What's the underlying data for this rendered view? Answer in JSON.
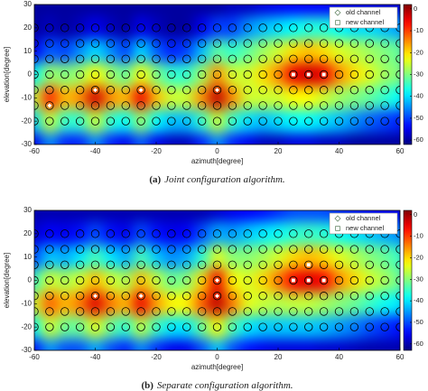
{
  "chart_data": [
    {
      "type": "heatmap",
      "xlabel": "azimuth[degree]",
      "ylabel": "elevation[degree]",
      "caption_label": "(a)",
      "caption": "Joint configuration algorithm.",
      "x": [
        -60,
        -55,
        -50,
        -45,
        -40,
        -35,
        -30,
        -25,
        -20,
        -15,
        -10,
        -5,
        0,
        5,
        10,
        15,
        20,
        25,
        30,
        35,
        40,
        45,
        50,
        55,
        60
      ],
      "y": [
        30,
        20,
        10,
        0,
        -10,
        -20,
        -30
      ],
      "values": [
        [
          -60,
          -60,
          -60,
          -60,
          -60,
          -60,
          -60,
          -60,
          -60,
          -60,
          -60,
          -60,
          -60,
          -58,
          -58,
          -56,
          -55,
          -54,
          -54,
          -54,
          -55,
          -55,
          -55,
          -56,
          -56
        ],
        [
          -60,
          -58,
          -60,
          -58,
          -55,
          -58,
          -60,
          -55,
          -58,
          -60,
          -60,
          -55,
          -50,
          -50,
          -45,
          -42,
          -40,
          -38,
          -36,
          -36,
          -38,
          -40,
          -40,
          -42,
          -44
        ],
        [
          -55,
          -48,
          -50,
          -45,
          -40,
          -45,
          -50,
          -40,
          -48,
          -52,
          -50,
          -42,
          -32,
          -35,
          -32,
          -28,
          -25,
          -20,
          -18,
          -20,
          -24,
          -26,
          -28,
          -30,
          -32
        ],
        [
          -38,
          -28,
          -30,
          -28,
          -22,
          -28,
          -32,
          -22,
          -30,
          -35,
          -35,
          -28,
          -15,
          -25,
          -25,
          -20,
          -15,
          -5,
          -3,
          -5,
          -15,
          -20,
          -24,
          -28,
          -30
        ],
        [
          -25,
          -8,
          -18,
          -15,
          -3,
          -15,
          -18,
          -5,
          -18,
          -25,
          -25,
          -15,
          -2,
          -15,
          -25,
          -25,
          -25,
          -22,
          -22,
          -25,
          -28,
          -30,
          -32,
          -35,
          -38
        ],
        [
          -40,
          -25,
          -35,
          -35,
          -25,
          -35,
          -38,
          -28,
          -38,
          -42,
          -42,
          -35,
          -25,
          -35,
          -40,
          -42,
          -40,
          -38,
          -38,
          -40,
          -42,
          -45,
          -48,
          -50,
          -52
        ],
        [
          -55,
          -45,
          -52,
          -52,
          -45,
          -52,
          -55,
          -48,
          -55,
          -58,
          -58,
          -52,
          -45,
          -52,
          -55,
          -58,
          -58,
          -56,
          -56,
          -58,
          -58,
          -60,
          -60,
          -60,
          -60
        ]
      ],
      "xlim": [
        -60,
        60
      ],
      "ylim": [
        -30,
        30
      ],
      "xticks": [
        -60,
        -40,
        -20,
        0,
        20,
        40,
        60
      ],
      "yticks": [
        -30,
        -20,
        -10,
        0,
        10,
        20,
        30
      ],
      "colormap": "jet",
      "clim": [
        -62,
        2
      ],
      "cticks": [
        -60,
        -50,
        -40,
        -30,
        -20,
        -10,
        0
      ],
      "candidates": {
        "x": [
          -60,
          -55,
          -50,
          -45,
          -40,
          -35,
          -30,
          -25,
          -20,
          -15,
          -10,
          -5,
          0,
          5,
          10,
          15,
          20,
          25,
          30,
          35,
          40,
          45,
          50,
          55,
          60
        ],
        "y": [
          20,
          13.33,
          6.67,
          0,
          -6.67,
          -13.33,
          -20
        ]
      },
      "series": [
        {
          "name": "old channel",
          "marker": "diamond",
          "color": "#ffffff",
          "x": [
            -55,
            -40,
            -25,
            0
          ],
          "y": [
            -13.33,
            -6.67,
            -6.67,
            -6.67
          ]
        },
        {
          "name": "new channel",
          "marker": "square",
          "color": "#ffffff",
          "x": [
            25,
            30,
            35
          ],
          "y": [
            0,
            0,
            0
          ]
        }
      ],
      "legend": "upper right"
    },
    {
      "type": "heatmap",
      "xlabel": "azimuth[degree]",
      "ylabel": "elevation[degree]",
      "caption_label": "(b)",
      "caption": "Separate configuration algorithm.",
      "x": [
        -60,
        -55,
        -50,
        -45,
        -40,
        -35,
        -30,
        -25,
        -20,
        -15,
        -10,
        -5,
        0,
        5,
        10,
        15,
        20,
        25,
        30,
        35,
        40,
        45,
        50,
        55,
        60
      ],
      "y": [
        30,
        20,
        10,
        0,
        -10,
        -20,
        -30
      ],
      "values": [
        [
          -60,
          -60,
          -60,
          -60,
          -60,
          -60,
          -60,
          -60,
          -60,
          -60,
          -60,
          -60,
          -58,
          -56,
          -55,
          -54,
          -52,
          -50,
          -50,
          -50,
          -52,
          -53,
          -54,
          -55,
          -56
        ],
        [
          -58,
          -55,
          -56,
          -54,
          -50,
          -54,
          -56,
          -50,
          -54,
          -56,
          -55,
          -50,
          -44,
          -45,
          -42,
          -40,
          -38,
          -36,
          -35,
          -36,
          -38,
          -40,
          -42,
          -44,
          -46
        ],
        [
          -50,
          -42,
          -44,
          -40,
          -34,
          -40,
          -44,
          -34,
          -42,
          -46,
          -44,
          -36,
          -24,
          -30,
          -30,
          -28,
          -25,
          -20,
          -18,
          -20,
          -24,
          -27,
          -30,
          -32,
          -35
        ],
        [
          -35,
          -25,
          -28,
          -25,
          -18,
          -25,
          -28,
          -18,
          -26,
          -32,
          -30,
          -20,
          -5,
          -22,
          -25,
          -20,
          -14,
          -6,
          -4,
          -6,
          -15,
          -20,
          -25,
          -28,
          -32
        ],
        [
          -25,
          -12,
          -18,
          -14,
          -4,
          -14,
          -18,
          -5,
          -16,
          -22,
          -22,
          -12,
          -2,
          -14,
          -24,
          -26,
          -27,
          -26,
          -26,
          -28,
          -30,
          -32,
          -35,
          -38,
          -40
        ],
        [
          -38,
          -25,
          -32,
          -32,
          -24,
          -32,
          -36,
          -26,
          -35,
          -40,
          -40,
          -32,
          -22,
          -34,
          -40,
          -42,
          -42,
          -42,
          -42,
          -43,
          -45,
          -47,
          -50,
          -52,
          -54
        ],
        [
          -54,
          -45,
          -50,
          -50,
          -44,
          -50,
          -53,
          -46,
          -52,
          -56,
          -56,
          -50,
          -42,
          -50,
          -54,
          -56,
          -57,
          -57,
          -57,
          -58,
          -58,
          -59,
          -60,
          -60,
          -60
        ]
      ],
      "xlim": [
        -60,
        60
      ],
      "ylim": [
        -30,
        30
      ],
      "xticks": [
        -60,
        -40,
        -20,
        0,
        20,
        40,
        60
      ],
      "yticks": [
        -30,
        -20,
        -10,
        0,
        10,
        20,
        30
      ],
      "colormap": "jet",
      "clim": [
        -63,
        2
      ],
      "cticks": [
        -60,
        -50,
        -40,
        -30,
        -20,
        -10,
        0
      ],
      "candidates": {
        "x": [
          -60,
          -55,
          -50,
          -45,
          -40,
          -35,
          -30,
          -25,
          -20,
          -15,
          -10,
          -5,
          0,
          5,
          10,
          15,
          20,
          25,
          30,
          35,
          40,
          45,
          50,
          55,
          60
        ],
        "y": [
          20,
          13.33,
          6.67,
          0,
          -6.67,
          -13.33,
          -20
        ]
      },
      "series": [
        {
          "name": "old channel",
          "marker": "diamond",
          "color": "#ffffff",
          "x": [
            -40,
            -25,
            0,
            0
          ],
          "y": [
            -6.67,
            -6.67,
            0,
            -6.67
          ]
        },
        {
          "name": "new channel",
          "marker": "square",
          "color": "#ffffff",
          "x": [
            25,
            30,
            35,
            30
          ],
          "y": [
            0,
            0,
            0,
            6.67
          ]
        }
      ],
      "legend": "upper right"
    }
  ]
}
